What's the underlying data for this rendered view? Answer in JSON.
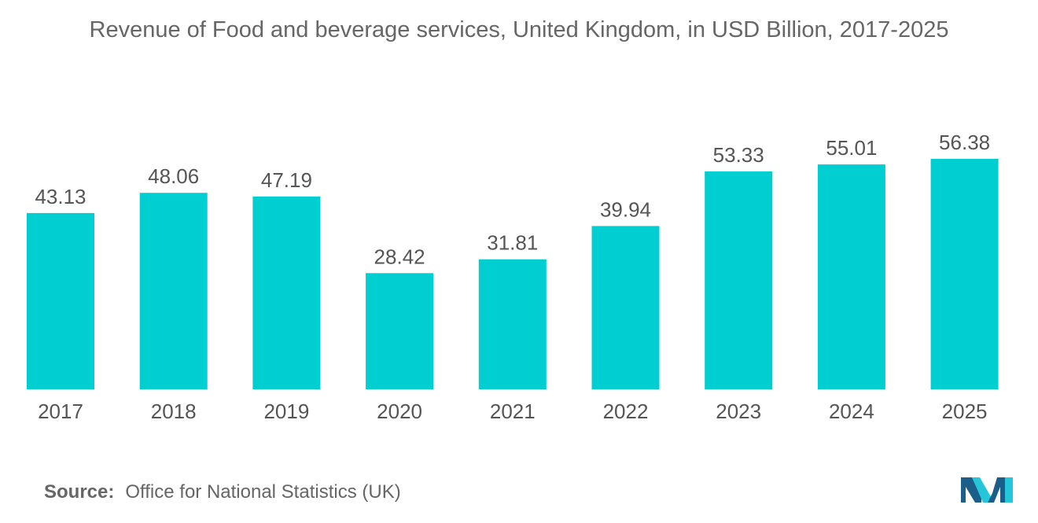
{
  "chart_data": {
    "type": "bar",
    "title": "Revenue of Food and beverage services, United Kingdom, in USD Billion, 2017-2025",
    "categories": [
      "2017",
      "2018",
      "2019",
      "2020",
      "2021",
      "2022",
      "2023",
      "2024",
      "2025"
    ],
    "values": [
      43.13,
      48.06,
      47.19,
      28.42,
      31.81,
      39.94,
      53.33,
      55.01,
      56.38
    ],
    "value_labels": [
      "43.13",
      "48.06",
      "47.19",
      "28.42",
      "31.81",
      "39.94",
      "53.33",
      "55.01",
      "56.38"
    ],
    "xlabel": "",
    "ylabel": "",
    "ylim": [
      0,
      56.38
    ],
    "grid": false,
    "legend": "none",
    "bar_color": "#00CED1"
  },
  "source": {
    "label": "Source:",
    "text": "Office for National Statistics (UK)"
  },
  "logo": {
    "icon": "mordor-intelligence-logo",
    "colors": [
      "#1B5E8A",
      "#26C6DA"
    ]
  },
  "colors": {
    "text": "#666666",
    "value_label": "#555555",
    "bar": "#00CED1"
  }
}
